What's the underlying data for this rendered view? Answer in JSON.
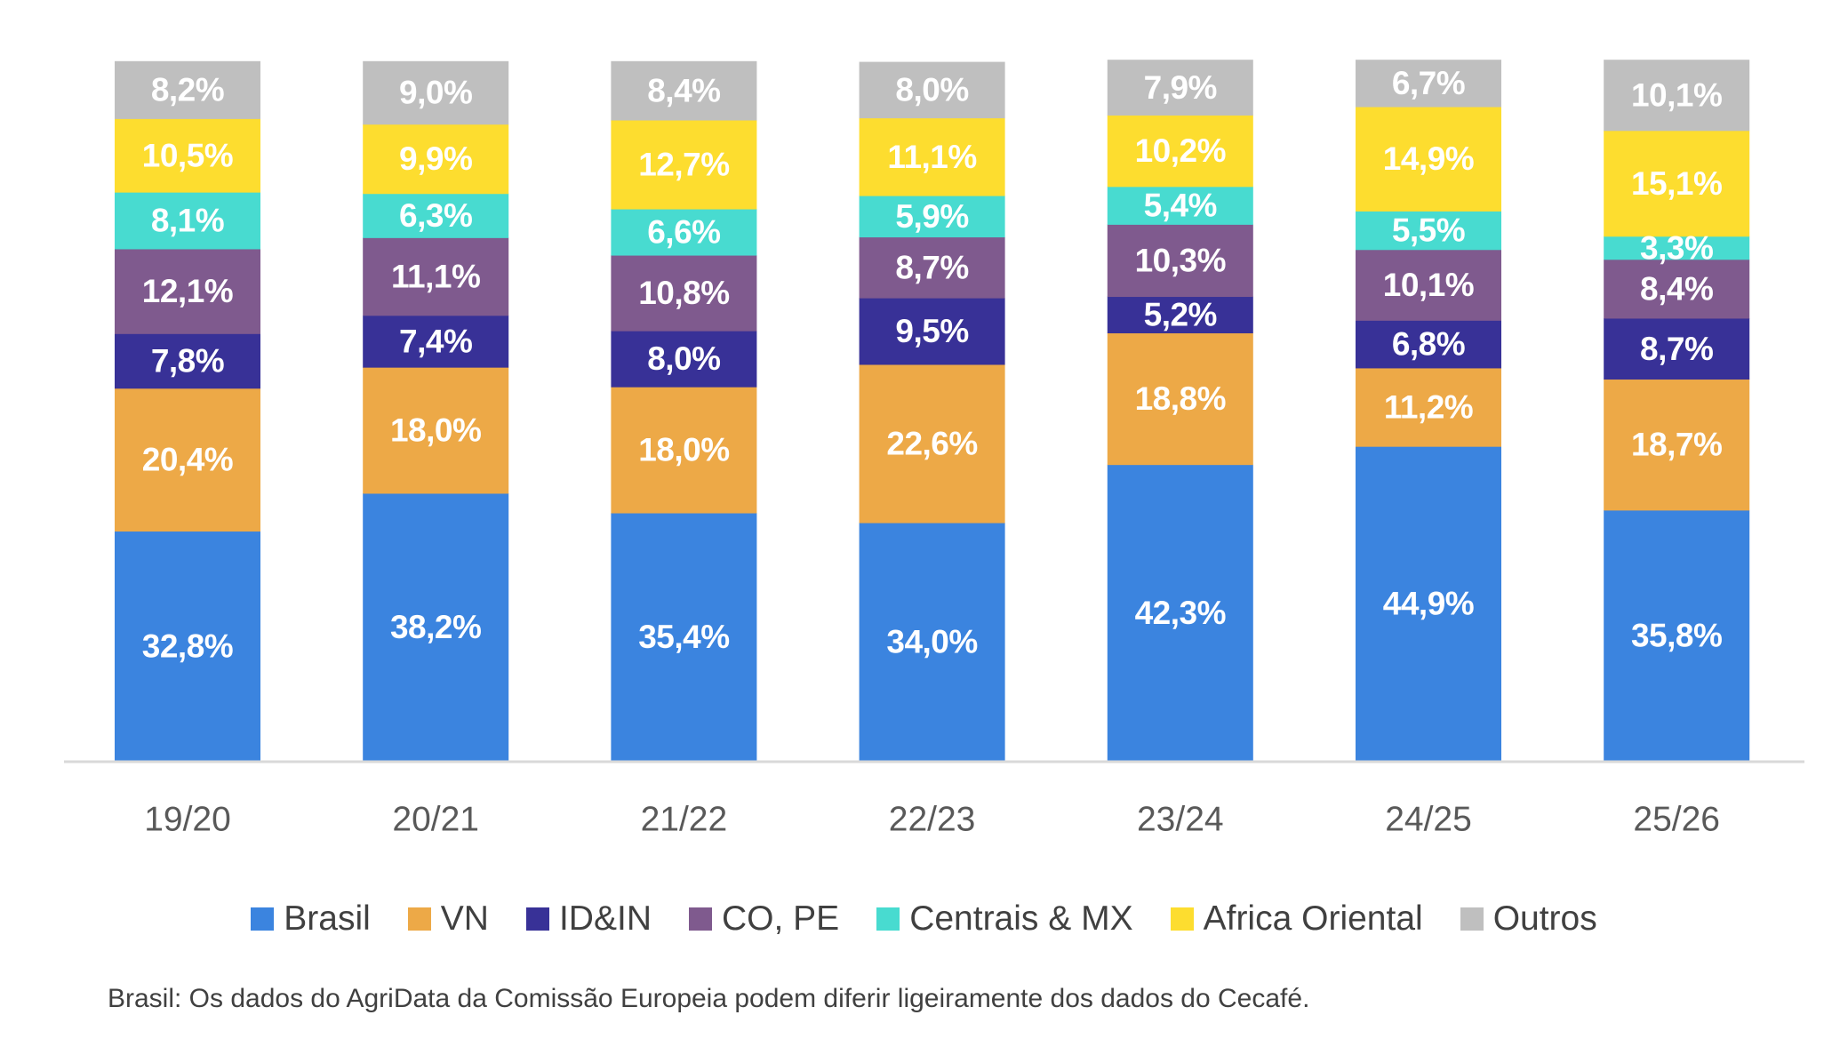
{
  "chart_data": {
    "type": "bar",
    "stacked": true,
    "percent_stacked": true,
    "title": "",
    "xlabel": "",
    "ylabel": "",
    "ylim": [
      0,
      100
    ],
    "grid": false,
    "categories": [
      "19/20",
      "20/21",
      "21/22",
      "22/23",
      "23/24",
      "24/25",
      "25/26"
    ],
    "series": [
      {
        "name": "Brasil",
        "color": "#3B84DF",
        "values": [
          32.8,
          38.2,
          35.4,
          34.0,
          42.3,
          44.9,
          35.8
        ],
        "labels": [
          "32,8%",
          "38,2%",
          "35,4%",
          "34,0%",
          "42,3%",
          "44,9%",
          "35,8%"
        ]
      },
      {
        "name": "VN",
        "color": "#EDA947",
        "values": [
          20.4,
          18.0,
          18.0,
          22.6,
          18.8,
          11.2,
          18.7
        ],
        "labels": [
          "20,4%",
          "18,0%",
          "18,0%",
          "22,6%",
          "18,8%",
          "11,2%",
          "18,7%"
        ]
      },
      {
        "name": "ID&IN",
        "color": "#383197",
        "values": [
          7.8,
          7.4,
          8.0,
          9.5,
          5.2,
          6.8,
          8.7
        ],
        "labels": [
          "7,8%",
          "7,4%",
          "8,0%",
          "9,5%",
          "5,2%",
          "6,8%",
          "8,7%"
        ]
      },
      {
        "name": "CO, PE",
        "color": "#7F5A8E",
        "values": [
          12.1,
          11.1,
          10.8,
          8.7,
          10.3,
          10.1,
          8.4
        ],
        "labels": [
          "12,1%",
          "11,1%",
          "10,8%",
          "8,7%",
          "10,3%",
          "10,1%",
          "8,4%"
        ]
      },
      {
        "name": "Centrais & MX",
        "color": "#48DBD0",
        "values": [
          8.1,
          6.3,
          6.6,
          5.9,
          5.4,
          5.5,
          3.3
        ],
        "labels": [
          "8,1%",
          "6,3%",
          "6,6%",
          "5,9%",
          "5,4%",
          "5,5%",
          "3,3%"
        ]
      },
      {
        "name": "Africa Oriental",
        "color": "#FDDD2F",
        "values": [
          10.5,
          9.9,
          12.7,
          11.1,
          10.2,
          14.9,
          15.1
        ],
        "labels": [
          "10,5%",
          "9,9%",
          "12,7%",
          "11,1%",
          "10,2%",
          "14,9%",
          "15,1%"
        ]
      },
      {
        "name": "Outros",
        "color": "#BFBFBF",
        "values": [
          8.2,
          9.0,
          8.4,
          8.0,
          7.9,
          6.7,
          10.1
        ],
        "labels": [
          "8,2%",
          "9,0%",
          "8,4%",
          "8,0%",
          "7,9%",
          "6,7%",
          "10,1%"
        ]
      }
    ],
    "legend_position": "bottom",
    "axis_color": "#D9D9D9"
  },
  "footnote": "Brasil: Os dados do AgriData da Comissão Europeia podem diferir ligeiramente dos dados do Cecafé."
}
